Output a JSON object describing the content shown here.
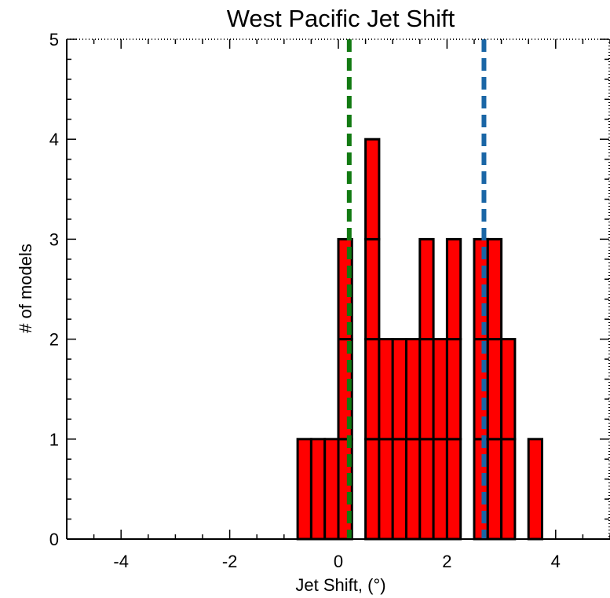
{
  "chart_data": {
    "type": "bar",
    "title": "West Pacific Jet Shift",
    "xlabel": "Jet Shift, (°)",
    "ylabel": "# of models",
    "xlim": [
      -5,
      5
    ],
    "ylim": [
      0,
      5
    ],
    "x_ticks": [
      -4,
      -2,
      0,
      2,
      4
    ],
    "y_ticks": [
      0,
      1,
      2,
      3,
      4,
      5
    ],
    "bar_width": 0.25,
    "bars": [
      {
        "x": -0.75,
        "count": 1
      },
      {
        "x": -0.5,
        "count": 1
      },
      {
        "x": -0.25,
        "count": 1
      },
      {
        "x": 0.0,
        "count": 3
      },
      {
        "x": 0.5,
        "count": 4
      },
      {
        "x": 0.75,
        "count": 2
      },
      {
        "x": 1.0,
        "count": 2
      },
      {
        "x": 1.25,
        "count": 2
      },
      {
        "x": 1.5,
        "count": 3
      },
      {
        "x": 1.75,
        "count": 2
      },
      {
        "x": 2.0,
        "count": 3
      },
      {
        "x": 2.5,
        "count": 3
      },
      {
        "x": 2.75,
        "count": 3
      },
      {
        "x": 3.0,
        "count": 2
      },
      {
        "x": 3.5,
        "count": 1
      }
    ],
    "bar_color": "#ff0000",
    "reference_lines": [
      {
        "x": 0.2,
        "color": "#127a12",
        "style": "dashed"
      },
      {
        "x": 2.68,
        "color": "#1a66a6",
        "style": "dashed"
      }
    ],
    "grid": false
  }
}
